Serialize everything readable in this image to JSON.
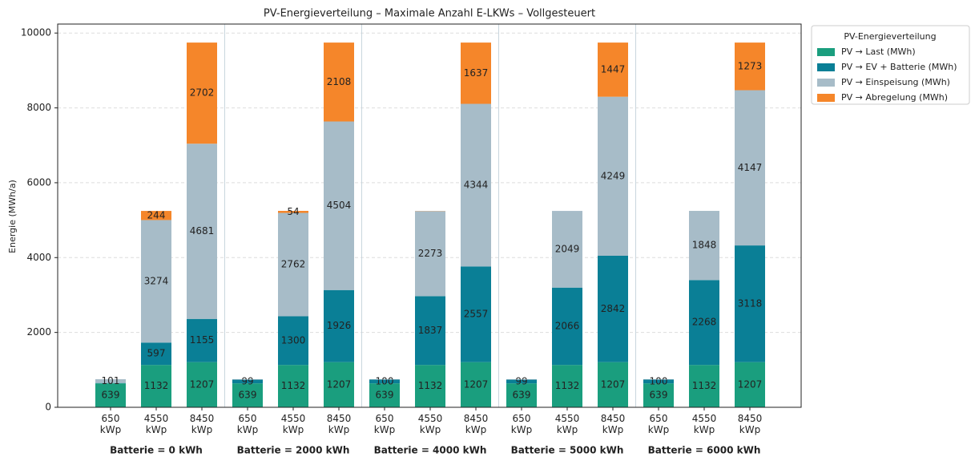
{
  "chart_data": {
    "type": "stacked_bar",
    "title": "PV-Energieverteilung  – Maximale Anzahl E-LKWs – Vollgesteuert",
    "y_label": "Energie (MWh/a)",
    "categories": [
      "650 kWp",
      "4550 kWp",
      "8450 kWp",
      "650 kWp",
      "4550 kWp",
      "8450 kWp",
      "650 kWp",
      "4550 kWp",
      "8450 kWp",
      "650 kWp",
      "4550 kWp",
      "8450 kWp",
      "650 kWp",
      "4550 kWp",
      "8450 kWp"
    ],
    "groups": [
      "Batterie = 0 kWh",
      "Batterie = 2000 kWh",
      "Batterie = 4000 kWh",
      "Batterie = 5000 kWh",
      "Batterie = 6000 kWh"
    ],
    "series": [
      {
        "name": "PV → Last (MWh)",
        "color": "#1a9e7e",
        "values": [
          639,
          1132,
          1207,
          639,
          1132,
          1207,
          639,
          1132,
          1207,
          639,
          1132,
          1207,
          639,
          1132,
          1207
        ]
      },
      {
        "name": "PV → EV + Batterie (MWh)",
        "color": "#0a7f96",
        "values": [
          10,
          597,
          1155,
          99,
          1300,
          1926,
          100,
          1837,
          2557,
          99,
          2066,
          2842,
          100,
          2268,
          3118
        ]
      },
      {
        "name": "PV → Einspeisung (MWh)",
        "color": "#a7bcc8",
        "values": [
          101,
          3274,
          4681,
          12,
          2762,
          4504,
          11,
          2273,
          4344,
          12,
          2049,
          4249,
          11,
          1848,
          4147
        ]
      },
      {
        "name": "PV → Abregelung (MWh)",
        "color": "#f5862a",
        "values": [
          0,
          244,
          2702,
          0,
          54,
          2108,
          0,
          5,
          1637,
          0,
          0,
          1447,
          0,
          0,
          1273
        ]
      }
    ],
    "legend_title": "PV-Energieverteilung",
    "legend": "upper-right-outside",
    "ylim": [
      0,
      10240
    ],
    "yticks": [
      0,
      2000,
      4000,
      6000,
      8000,
      10000
    ],
    "grid": true
  }
}
